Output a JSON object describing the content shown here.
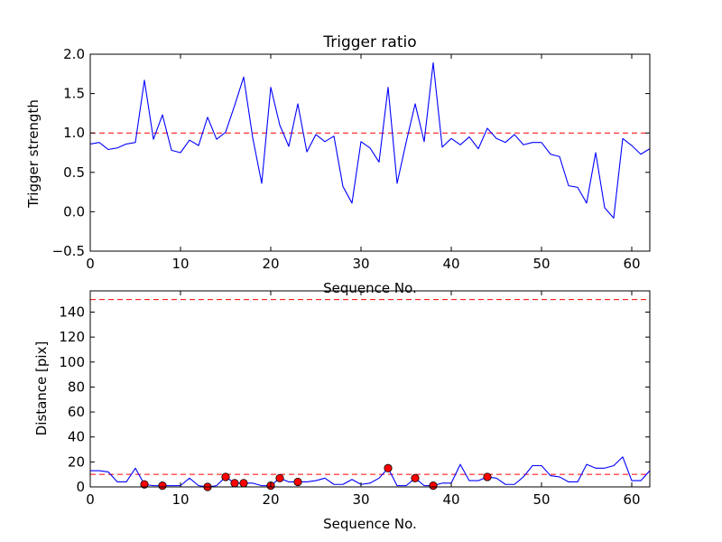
{
  "chart_data": [
    {
      "type": "line",
      "title": "Trigger ratio",
      "xlabel": "Sequence No.",
      "ylabel": "Trigger strength",
      "xlim": [
        0,
        62
      ],
      "ylim": [
        -0.5,
        2.0
      ],
      "grid": false,
      "xticks": [
        0,
        10,
        20,
        30,
        40,
        50,
        60
      ],
      "xtick_labels": [
        "0",
        "10",
        "20",
        "30",
        "40",
        "50",
        "60"
      ],
      "yticks": [
        -0.5,
        0.0,
        0.5,
        1.0,
        1.5,
        2.0
      ],
      "ytick_labels": [
        "−0.5",
        "0.0",
        "0.5",
        "1.0",
        "1.5",
        "2.0"
      ],
      "series": [
        {
          "name": "trigger strength",
          "color": "#0000ff",
          "x": [
            0,
            1,
            2,
            3,
            4,
            5,
            6,
            7,
            8,
            9,
            10,
            11,
            12,
            13,
            14,
            15,
            16,
            17,
            18,
            19,
            20,
            21,
            22,
            23,
            24,
            25,
            26,
            27,
            28,
            29,
            30,
            31,
            32,
            33,
            34,
            35,
            36,
            37,
            38,
            39,
            40,
            41,
            42,
            43,
            44,
            45,
            46,
            47,
            48,
            49,
            50,
            51,
            52,
            53,
            54,
            55,
            56,
            57,
            58,
            59,
            60,
            61,
            62
          ],
          "y": [
            0.86,
            0.88,
            0.79,
            0.81,
            0.86,
            0.88,
            1.67,
            0.92,
            1.23,
            0.78,
            0.75,
            0.91,
            0.84,
            1.2,
            0.92,
            1.01,
            1.35,
            1.71,
            0.94,
            0.36,
            1.58,
            1.1,
            0.83,
            1.37,
            0.76,
            0.98,
            0.89,
            0.96,
            0.32,
            0.11,
            0.89,
            0.81,
            0.63,
            1.58,
            0.36,
            0.88,
            1.37,
            0.89,
            1.89,
            0.82,
            0.93,
            0.85,
            0.95,
            0.8,
            1.06,
            0.93,
            0.88,
            0.98,
            0.85,
            0.88,
            0.88,
            0.73,
            0.7,
            0.33,
            0.31,
            0.11,
            0.75,
            0.05,
            -0.08,
            0.93,
            0.84,
            0.73,
            0.8
          ]
        }
      ],
      "hlines": [
        {
          "y": 1.0,
          "color": "#ff0000",
          "style": "dashed"
        }
      ]
    },
    {
      "type": "line",
      "title": "",
      "xlabel": "Sequence No.",
      "ylabel": "Distance [pix]",
      "xlim": [
        0,
        62
      ],
      "ylim": [
        0,
        157
      ],
      "grid": false,
      "xticks": [
        0,
        10,
        20,
        30,
        40,
        50,
        60
      ],
      "xtick_labels": [
        "0",
        "10",
        "20",
        "30",
        "40",
        "50",
        "60"
      ],
      "yticks": [
        0,
        20,
        40,
        60,
        80,
        100,
        120,
        140
      ],
      "ytick_labels": [
        "0",
        "20",
        "40",
        "60",
        "80",
        "100",
        "120",
        "140"
      ],
      "series": [
        {
          "name": "distance",
          "color": "#0000ff",
          "x": [
            0,
            1,
            2,
            3,
            4,
            5,
            6,
            7,
            8,
            9,
            10,
            11,
            12,
            13,
            14,
            15,
            16,
            17,
            18,
            19,
            20,
            21,
            22,
            23,
            24,
            25,
            26,
            27,
            28,
            29,
            30,
            31,
            32,
            33,
            34,
            35,
            36,
            37,
            38,
            39,
            40,
            41,
            42,
            43,
            44,
            45,
            46,
            47,
            48,
            49,
            50,
            51,
            52,
            53,
            54,
            55,
            56,
            57,
            58,
            59,
            60,
            61,
            62
          ],
          "y": [
            13,
            13,
            12,
            4,
            4,
            15,
            2,
            1,
            1,
            1,
            1,
            7,
            1,
            0,
            1,
            8,
            3,
            3,
            3,
            1,
            1,
            7,
            4,
            4,
            4,
            5,
            7,
            2,
            2,
            6,
            2,
            3,
            7,
            15,
            1,
            1,
            7,
            1,
            1,
            3,
            3,
            18,
            5,
            5,
            8,
            7,
            2,
            2,
            8,
            17,
            17,
            9,
            8,
            4,
            4,
            18,
            15,
            15,
            17,
            24,
            5,
            5,
            13
          ]
        },
        {
          "name": "trigger points",
          "color": "#ff0000",
          "marker": "circle",
          "x": [
            6,
            8,
            13,
            15,
            16,
            17,
            20,
            21,
            23,
            33,
            36,
            38,
            44
          ],
          "y": [
            2,
            1,
            0,
            8,
            3,
            3,
            1,
            7,
            4,
            15,
            7,
            1,
            8
          ]
        }
      ],
      "hlines": [
        {
          "y": 150,
          "color": "#ff0000",
          "style": "dashed"
        },
        {
          "y": 10,
          "color": "#ff0000",
          "style": "dashed"
        }
      ]
    }
  ]
}
